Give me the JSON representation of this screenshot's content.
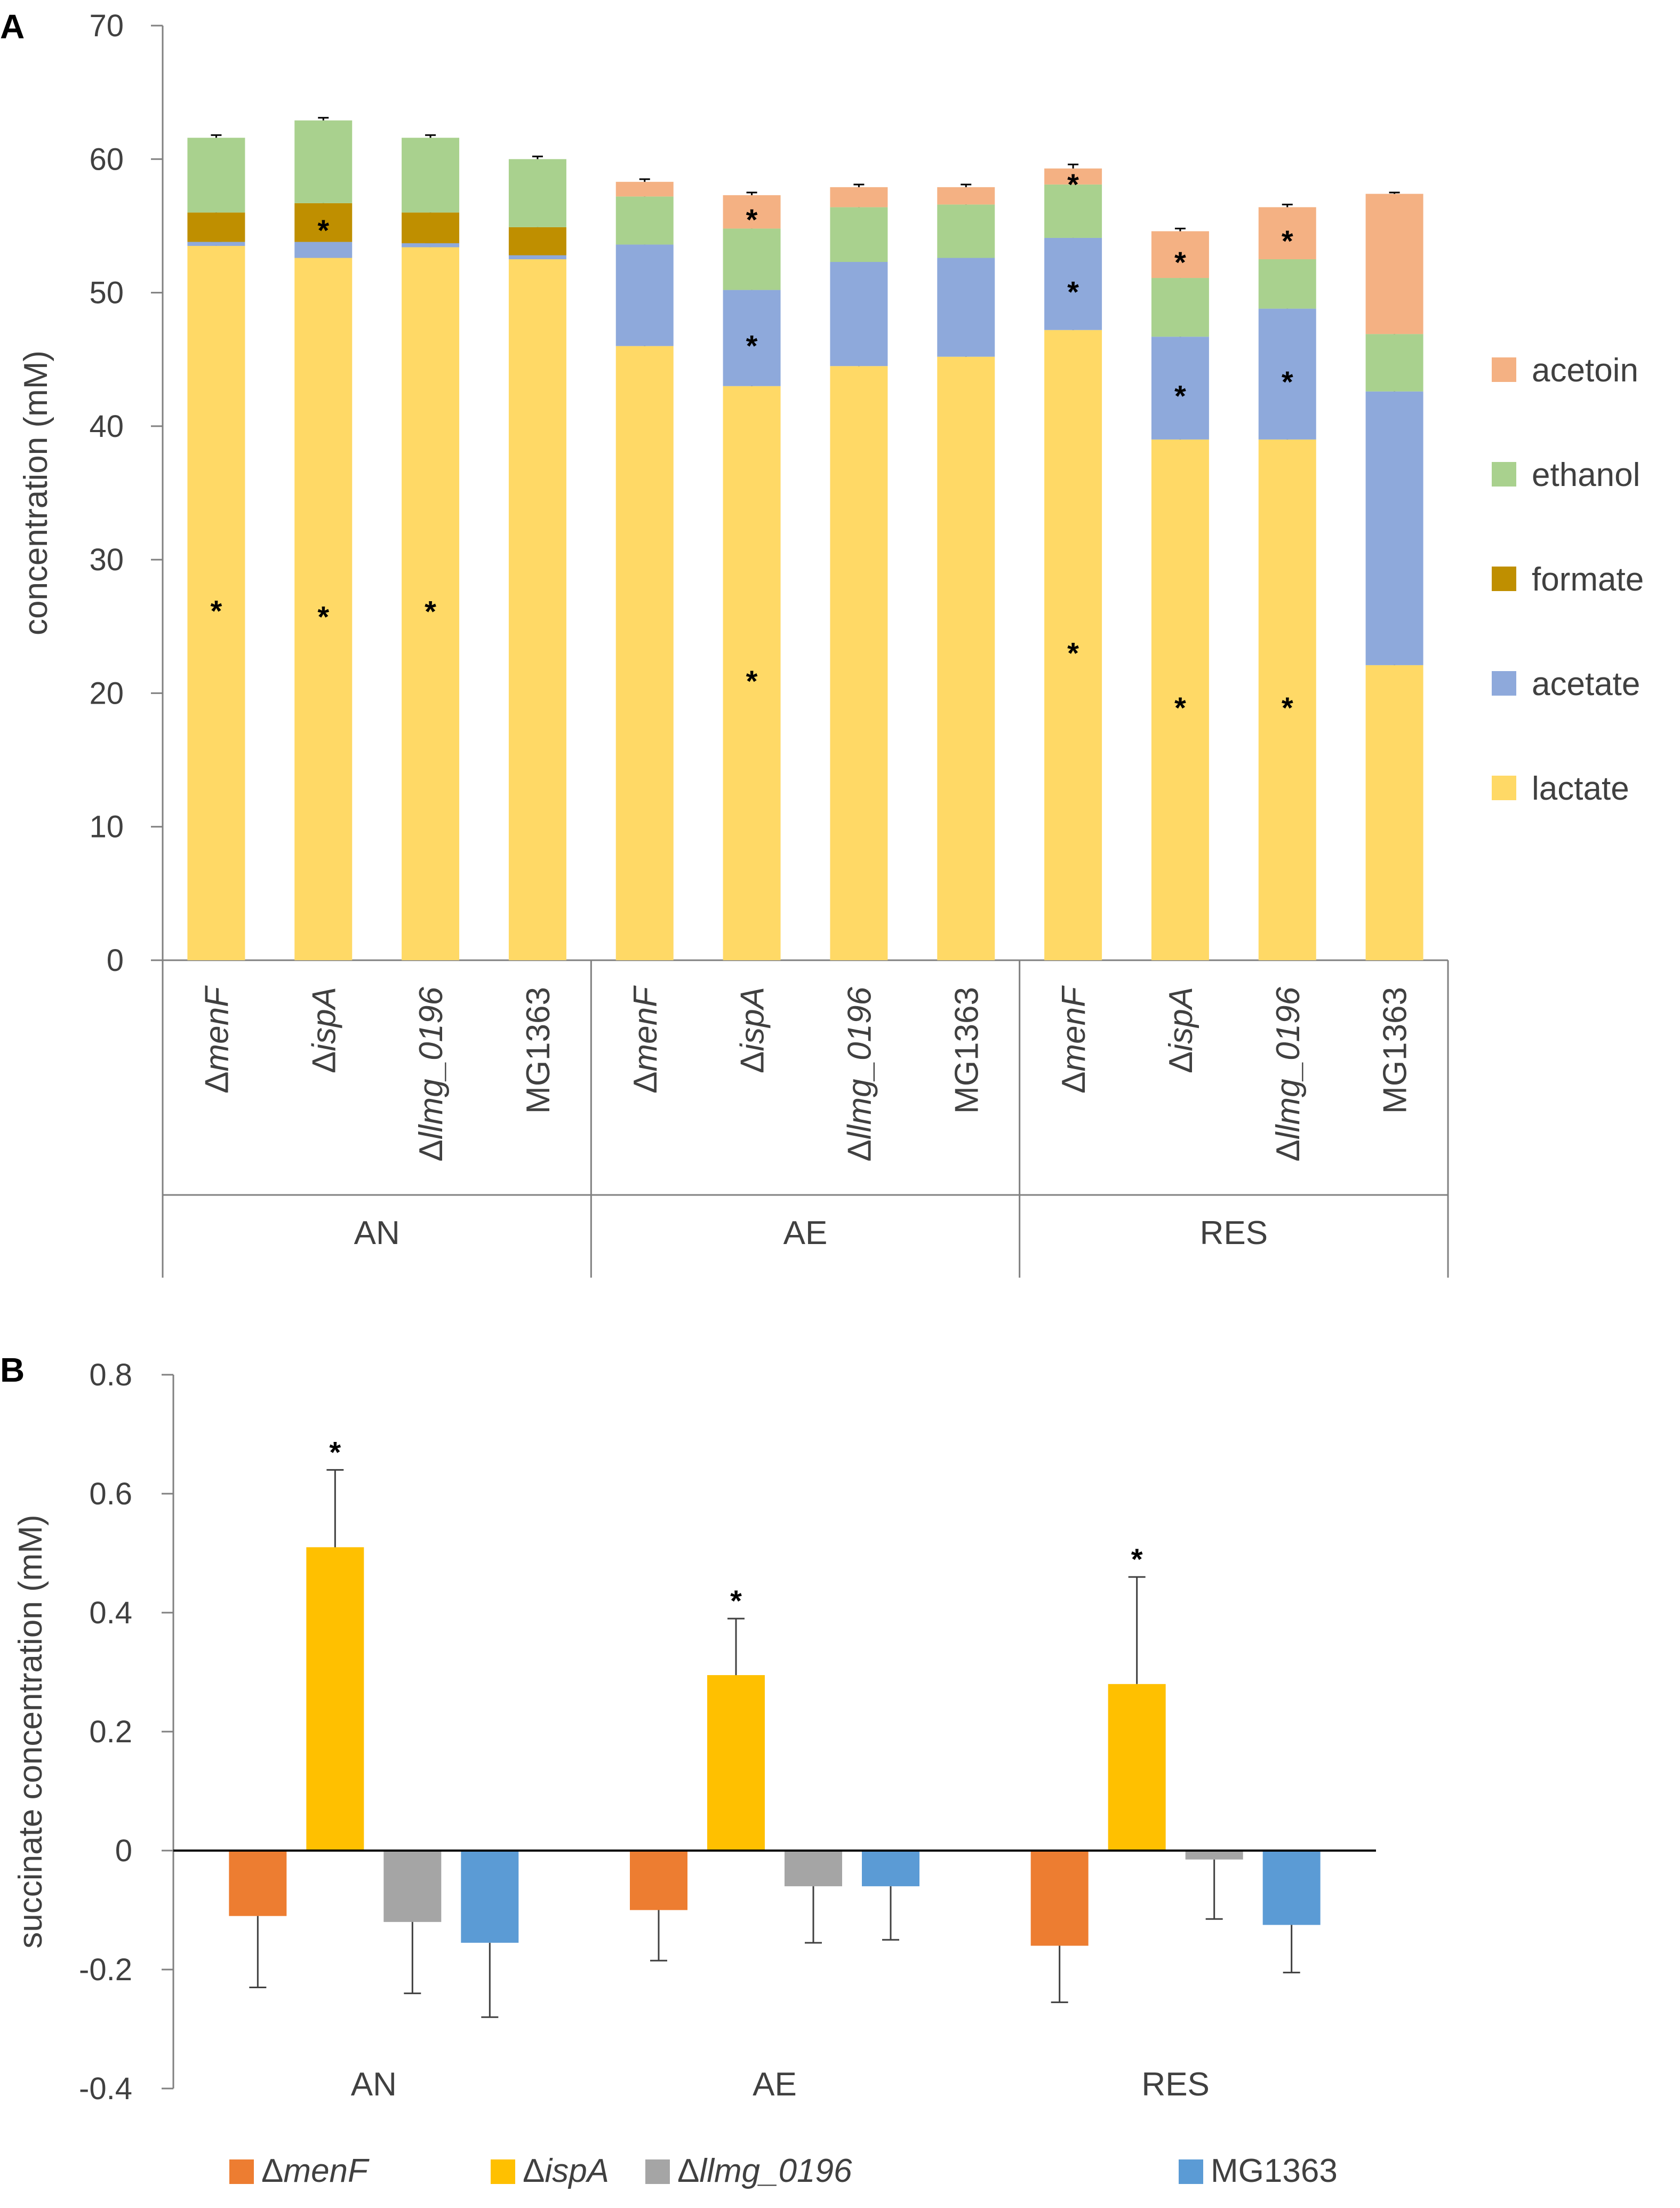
{
  "chart_data": [
    {
      "panel": "A",
      "type": "bar",
      "stacked": true,
      "ylabel": "concentration (mM)",
      "ylim": [
        0,
        70
      ],
      "yticks": [
        "0",
        "10",
        "20",
        "30",
        "40",
        "50",
        "60",
        "70"
      ],
      "group_labels": [
        "AN",
        "AE",
        "RES"
      ],
      "categories": [
        {
          "group": "AN",
          "prefix": "Δ",
          "name": "menF",
          "italic": true
        },
        {
          "group": "AN",
          "prefix": "Δ",
          "name": "ispA",
          "italic": true
        },
        {
          "group": "AN",
          "prefix": "Δ",
          "name": "llmg_0196",
          "italic": true
        },
        {
          "group": "AN",
          "prefix": "",
          "name": "MG1363",
          "italic": false
        },
        {
          "group": "AE",
          "prefix": "Δ",
          "name": "menF",
          "italic": true
        },
        {
          "group": "AE",
          "prefix": "Δ",
          "name": "ispA",
          "italic": true
        },
        {
          "group": "AE",
          "prefix": "Δ",
          "name": "llmg_0196",
          "italic": true
        },
        {
          "group": "AE",
          "prefix": "",
          "name": "MG1363",
          "italic": false
        },
        {
          "group": "RES",
          "prefix": "Δ",
          "name": "menF",
          "italic": true
        },
        {
          "group": "RES",
          "prefix": "Δ",
          "name": "ispA",
          "italic": true
        },
        {
          "group": "RES",
          "prefix": "Δ",
          "name": "llmg_0196",
          "italic": true
        },
        {
          "group": "RES",
          "prefix": "",
          "name": "MG1363",
          "italic": false
        }
      ],
      "series": [
        {
          "name": "lactate",
          "color": "#FFD966",
          "values": [
            53.5,
            52.6,
            53.4,
            52.5,
            46.0,
            43.0,
            44.5,
            45.2,
            47.2,
            39.0,
            39.0,
            22.1
          ],
          "errors": [
            0.3,
            0.3,
            0.3,
            0.3,
            0.2,
            0.4,
            0.2,
            0.2,
            0.3,
            2.3,
            0.6,
            0.2
          ],
          "significant": [
            true,
            true,
            true,
            false,
            false,
            true,
            false,
            false,
            true,
            true,
            true,
            false
          ]
        },
        {
          "name": "acetate",
          "color": "#8EA9DB",
          "values": [
            0.3,
            1.2,
            0.3,
            0.3,
            7.6,
            7.2,
            7.8,
            7.4,
            6.9,
            7.7,
            9.8,
            20.5
          ],
          "errors": [
            0,
            0,
            0,
            0,
            0.1,
            0.3,
            0.2,
            0.2,
            0.2,
            0.4,
            0.4,
            0.2
          ],
          "significant": [
            false,
            false,
            false,
            false,
            false,
            true,
            false,
            false,
            true,
            true,
            true,
            false
          ]
        },
        {
          "name": "formate",
          "color": "#BF8F00",
          "values": [
            2.2,
            2.9,
            2.3,
            2.1,
            0,
            0,
            0,
            0,
            0,
            0,
            0,
            0
          ],
          "errors": [
            0.2,
            0.2,
            0.2,
            0.2,
            0,
            0,
            0,
            0,
            0,
            0,
            0,
            0
          ],
          "significant": [
            false,
            true,
            false,
            false,
            false,
            false,
            false,
            false,
            false,
            false,
            false,
            false
          ]
        },
        {
          "name": "ethanol",
          "color": "#A9D18E",
          "values": [
            5.6,
            6.2,
            5.6,
            5.1,
            3.6,
            4.6,
            4.1,
            4.0,
            4.0,
            4.4,
            3.7,
            4.3
          ],
          "errors": [
            0.2,
            0.2,
            0.2,
            0.2,
            0.2,
            0.2,
            0.2,
            0.2,
            0.2,
            0.2,
            0.3,
            0.2
          ],
          "significant": [
            false,
            false,
            false,
            false,
            false,
            false,
            false,
            false,
            false,
            false,
            false,
            false
          ]
        },
        {
          "name": "acetoin",
          "color": "#F4B183",
          "values": [
            0,
            0,
            0,
            0,
            1.1,
            2.5,
            1.5,
            1.3,
            1.2,
            3.5,
            3.9,
            10.5
          ],
          "errors": [
            0,
            0,
            0,
            0,
            0.2,
            0.2,
            0.2,
            0.2,
            0.3,
            0.2,
            0.2,
            0.1
          ],
          "significant": [
            false,
            false,
            false,
            false,
            false,
            true,
            false,
            false,
            true,
            true,
            true,
            false
          ]
        }
      ],
      "legend": [
        "acetoin",
        "ethanol",
        "formate",
        "acetate",
        "lactate"
      ],
      "legend_position": "right",
      "annotation": "*"
    },
    {
      "panel": "B",
      "type": "bar",
      "stacked": false,
      "ylabel": "succinate concentration (mM)",
      "ylim": [
        -0.4,
        0.8
      ],
      "yticks": [
        "-0.4",
        "-0.2",
        "0",
        "0.2",
        "0.4",
        "0.6",
        "0.8"
      ],
      "categories": [
        "AN",
        "AE",
        "RES"
      ],
      "series": [
        {
          "name": "menF",
          "prefix": "Δ",
          "italic": true,
          "color": "#ED7D31",
          "values": [
            -0.11,
            -0.1,
            -0.16
          ],
          "errors": [
            0.12,
            0.085,
            0.095
          ],
          "significant": [
            false,
            false,
            false
          ]
        },
        {
          "name": "ispA",
          "prefix": "Δ",
          "italic": true,
          "color": "#FFC000",
          "values": [
            0.51,
            0.295,
            0.28
          ],
          "errors": [
            0.13,
            0.095,
            0.18
          ],
          "significant": [
            true,
            true,
            true
          ]
        },
        {
          "name": "llmg_0196",
          "prefix": "Δ",
          "italic": true,
          "color": "#A5A5A5",
          "values": [
            -0.12,
            -0.06,
            -0.015
          ],
          "errors": [
            0.12,
            0.095,
            0.1
          ],
          "significant": [
            false,
            false,
            false
          ]
        },
        {
          "name": "MG1363",
          "prefix": "",
          "italic": false,
          "color": "#5B9BD5",
          "values": [
            -0.155,
            -0.06,
            -0.125
          ],
          "errors": [
            0.125,
            0.09,
            0.08
          ],
          "significant": [
            false,
            false,
            false
          ]
        }
      ],
      "legend_position": "bottom",
      "annotation": "*"
    }
  ]
}
